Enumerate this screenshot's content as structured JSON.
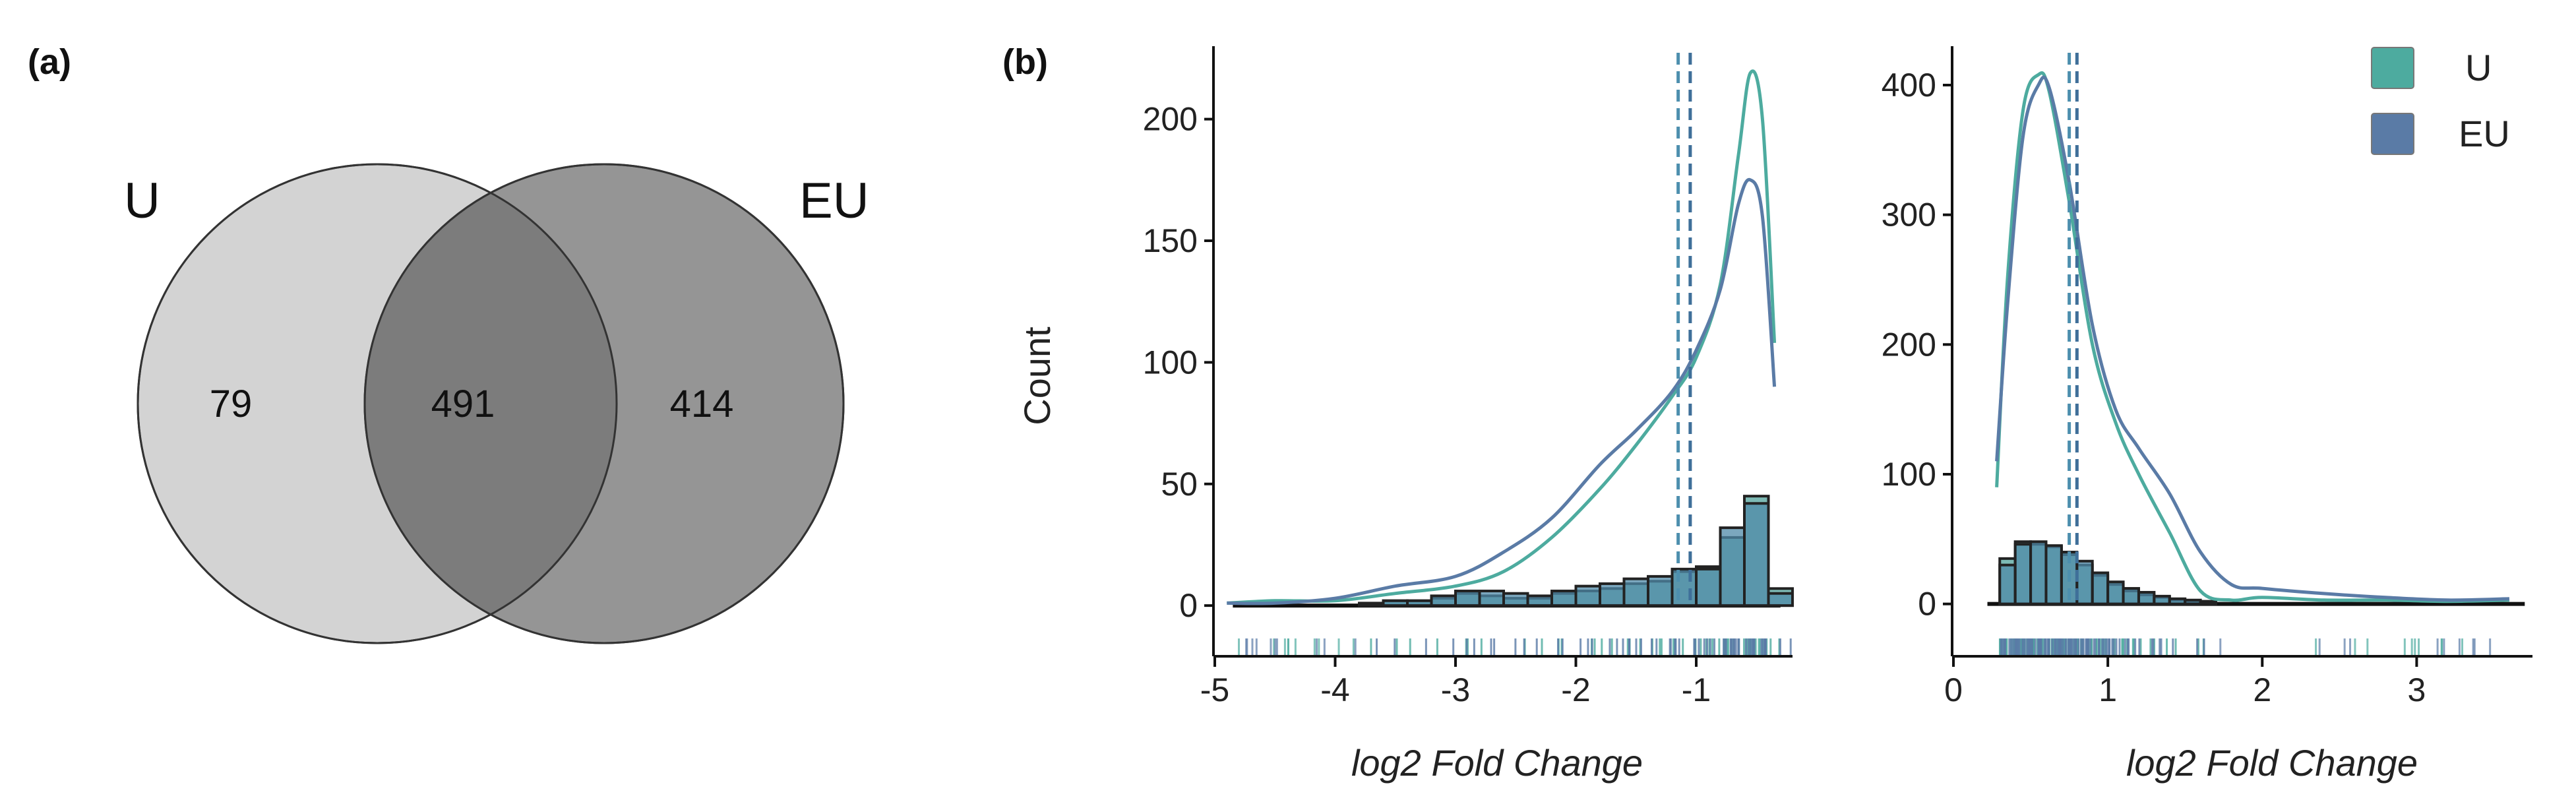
{
  "panel_a": {
    "letter": "(a)",
    "set_left_label": "U",
    "set_right_label": "EU",
    "only_left": "79",
    "intersection": "491",
    "only_right": "414",
    "colors": {
      "left": "#d3d3d3",
      "right": "#959595",
      "overlap": "#7c7c7c",
      "stroke": "#333333"
    }
  },
  "panel_b": {
    "letter": "(b)"
  },
  "legend": {
    "items": [
      {
        "label": "U",
        "color": "#4dab9f"
      },
      {
        "label": "EU",
        "color": "#5a7ba6"
      }
    ]
  },
  "chart_data": [
    {
      "type": "histogram+density",
      "panel": "b-left",
      "xlabel": "log2 Fold Change",
      "ylabel": "Count",
      "xlim": [
        -5,
        -0.2
      ],
      "ylim": [
        -10,
        230
      ],
      "xticks": [
        -5,
        -4,
        -3,
        -2,
        -1
      ],
      "yticks": [
        0,
        50,
        100,
        150,
        200
      ],
      "vlines": [
        -1.15,
        -1.05
      ],
      "hist_bin_width": 0.2,
      "hist_bins_start": [
        -3.8,
        -3.6,
        -3.4,
        -3.2,
        -3.0,
        -2.8,
        -2.6,
        -2.4,
        -2.2,
        -2.0,
        -1.8,
        -1.6,
        -1.4,
        -1.2,
        -1.0,
        -0.8,
        -0.6,
        -0.4
      ],
      "series": [
        {
          "name": "U",
          "hist": [
            1,
            2,
            2,
            3,
            5,
            4,
            3,
            3,
            5,
            6,
            7,
            9,
            10,
            14,
            16,
            28,
            45,
            7
          ],
          "density_x": [
            -4.9,
            -4.5,
            -4.0,
            -3.5,
            -3.0,
            -2.6,
            -2.2,
            -1.8,
            -1.5,
            -1.2,
            -1.0,
            -0.8,
            -0.65,
            -0.55,
            -0.45,
            -0.35
          ],
          "density_y": [
            1,
            2,
            2,
            5,
            8,
            14,
            28,
            48,
            66,
            86,
            102,
            132,
            185,
            219,
            200,
            108
          ]
        },
        {
          "name": "EU",
          "hist": [
            1,
            2,
            2,
            4,
            6,
            6,
            5,
            4,
            6,
            8,
            9,
            11,
            12,
            15,
            15,
            32,
            42,
            5
          ],
          "density_x": [
            -4.9,
            -4.5,
            -4.0,
            -3.5,
            -3.0,
            -2.6,
            -2.2,
            -1.8,
            -1.5,
            -1.2,
            -1.0,
            -0.8,
            -0.65,
            -0.55,
            -0.45,
            -0.35
          ],
          "density_y": [
            1,
            1,
            3,
            8,
            12,
            22,
            36,
            58,
            72,
            88,
            105,
            130,
            165,
            175,
            160,
            90
          ]
        }
      ]
    },
    {
      "type": "histogram+density",
      "panel": "b-right",
      "xlabel": "log2 Fold Change",
      "ylabel": "",
      "xlim": [
        0,
        3.75
      ],
      "ylim": [
        -20,
        430
      ],
      "xticks": [
        0,
        1,
        2,
        3
      ],
      "yticks": [
        0,
        100,
        200,
        300,
        400
      ],
      "vlines": [
        0.75,
        0.8
      ],
      "hist_bin_width": 0.1,
      "hist_bins_start": [
        0.3,
        0.4,
        0.5,
        0.6,
        0.7,
        0.8,
        0.9,
        1.0,
        1.1,
        1.2,
        1.3,
        1.4,
        1.5,
        1.6
      ],
      "series": [
        {
          "name": "U",
          "hist": [
            35,
            48,
            46,
            44,
            38,
            30,
            22,
            15,
            10,
            7,
            5,
            3,
            2,
            2
          ],
          "density_x": [
            0.28,
            0.35,
            0.45,
            0.55,
            0.62,
            0.75,
            0.9,
            1.05,
            1.2,
            1.4,
            1.6,
            1.8,
            2.0,
            2.4,
            2.8,
            3.2,
            3.6
          ],
          "density_y": [
            90,
            250,
            380,
            408,
            395,
            310,
            200,
            140,
            100,
            55,
            10,
            3,
            5,
            3,
            3,
            2,
            3
          ]
        },
        {
          "name": "EU",
          "hist": [
            30,
            46,
            48,
            45,
            40,
            33,
            24,
            17,
            12,
            9,
            6,
            4,
            3,
            2
          ],
          "density_x": [
            0.28,
            0.35,
            0.45,
            0.55,
            0.62,
            0.75,
            0.9,
            1.05,
            1.2,
            1.4,
            1.6,
            1.8,
            2.0,
            2.4,
            2.8,
            3.2,
            3.6
          ],
          "density_y": [
            110,
            230,
            360,
            400,
            398,
            325,
            215,
            150,
            120,
            85,
            40,
            15,
            12,
            8,
            5,
            3,
            4
          ]
        }
      ]
    }
  ]
}
